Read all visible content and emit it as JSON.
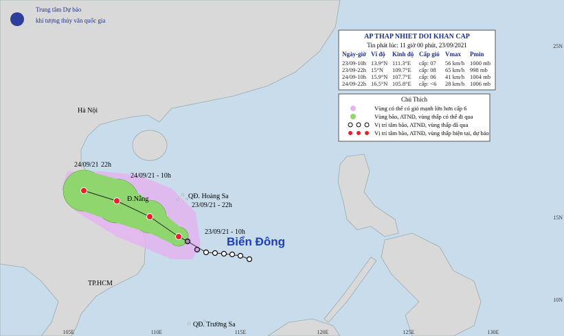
{
  "header": {
    "org_line1": "Trung tâm Dự báo",
    "org_line2": "khí tượng thủy văn quốc gia"
  },
  "table": {
    "title": "AP THAP NHIET DOI KHAN CAP",
    "subtitle": "Tin phát lúc: 11 giờ 00 phút, 23/09/2021",
    "columns": [
      "Ngày-giờ",
      "Vĩ độ",
      "Kinh độ",
      "Cấp gió",
      "Vmax",
      "Pmin"
    ],
    "rows": [
      [
        "23/09-10h",
        "13.9°N",
        "111.3°E",
        "cấp: 07",
        "56 km/h",
        "1000 mb"
      ],
      [
        "23/09-22h",
        "15°N",
        "109.7°E",
        "cấp: 08",
        "65 km/h",
        "998 mb"
      ],
      [
        "24/09-10h",
        "15.9°N",
        "107.7°E",
        "cấp: 06",
        "41 km/h",
        "1004 mb"
      ],
      [
        "24/09-22h",
        "16.5°N",
        "105.8°E",
        "cấp: <6",
        "28 km/h",
        "1006 mb"
      ]
    ]
  },
  "legend": {
    "title": "Chú Thích",
    "items": [
      "Vùng có thể có gió mạnh lớn hơn cấp 6",
      "Vùng bão, ATNĐ, vùng thấp có thể đi qua",
      "Vị trí tâm bão, ATNĐ, vùng thấp đã qua",
      "Vị trí tâm bão, ATNĐ, vùng thấp hiện tại, dự báo"
    ]
  },
  "places": {
    "hanoi": "Hà Nội",
    "danang": "Đ.Nẵng",
    "hoangsa": "QĐ. Hoàng Sa",
    "hcm": "TP.HCM",
    "truongsa": "QĐ. Trường Sa",
    "sea": "Biển Đông"
  },
  "track_labels": {
    "t1_date": "24/09/21",
    "t1_hour": "22h",
    "t2": "24/09/21 - 10h",
    "t3": "23/09/21 - 22h",
    "t4": "23/09/21 - 10h"
  },
  "longitudes": [
    "105E",
    "110E",
    "115E",
    "120E",
    "125E",
    "130E"
  ],
  "latitudes": [
    "25N",
    "15N",
    "10N"
  ]
}
